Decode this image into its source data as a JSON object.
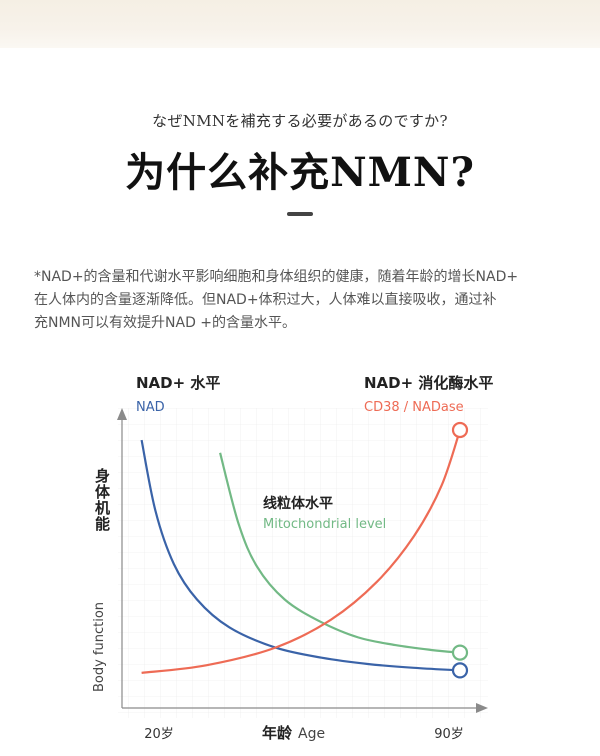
{
  "header": {
    "subtitle": "なぜNMNを補充する必要があるのですか?",
    "title": "为什么补充NMN?"
  },
  "intro": {
    "lines": [
      "*NAD+的含量和代谢水平影响细胞和身体组织的健康，随着年龄的增长NAD+",
      "在人体内的含量逐渐降低。但NAD+体积过大，人体难以直接吸收，通过补",
      "充NMN可以有效提升NAD +的含量水平。"
    ]
  },
  "chart_data": {
    "type": "line",
    "xlabel_cn": "年龄",
    "xlabel_en": "Age",
    "ylabel_cn": "身体机能",
    "ylabel_en": "Body function",
    "x_ticks": [
      "20岁",
      "90岁"
    ],
    "xlim": [
      20,
      90
    ],
    "ylim": [
      0,
      100
    ],
    "grid": true,
    "series": [
      {
        "key": "nad",
        "name_cn": "NAD+ 水平",
        "name_en": "NAD",
        "color": "#3a63a8",
        "x": [
          21,
          24,
          28,
          33,
          40,
          50,
          60,
          70,
          80,
          90
        ],
        "values": [
          96,
          68,
          47,
          33,
          22,
          14,
          10,
          7.5,
          6,
          5
        ]
      },
      {
        "key": "mito",
        "name_cn": "线粒体水平",
        "name_en": "Mitochondrial level",
        "color": "#72b985",
        "x": [
          38,
          42,
          46,
          52,
          60,
          68,
          76,
          84,
          90
        ],
        "values": [
          91,
          63,
          46,
          33,
          24,
          18,
          15,
          13,
          12
        ]
      },
      {
        "key": "cd38",
        "name_cn": "NAD+ 消化酶水平",
        "name_en": "CD38 / NADase",
        "color": "#ee6b55",
        "x": [
          21,
          35,
          50,
          62,
          72,
          80,
          86,
          90
        ],
        "values": [
          4,
          7,
          14,
          25,
          40,
          58,
          78,
          100
        ]
      }
    ]
  }
}
